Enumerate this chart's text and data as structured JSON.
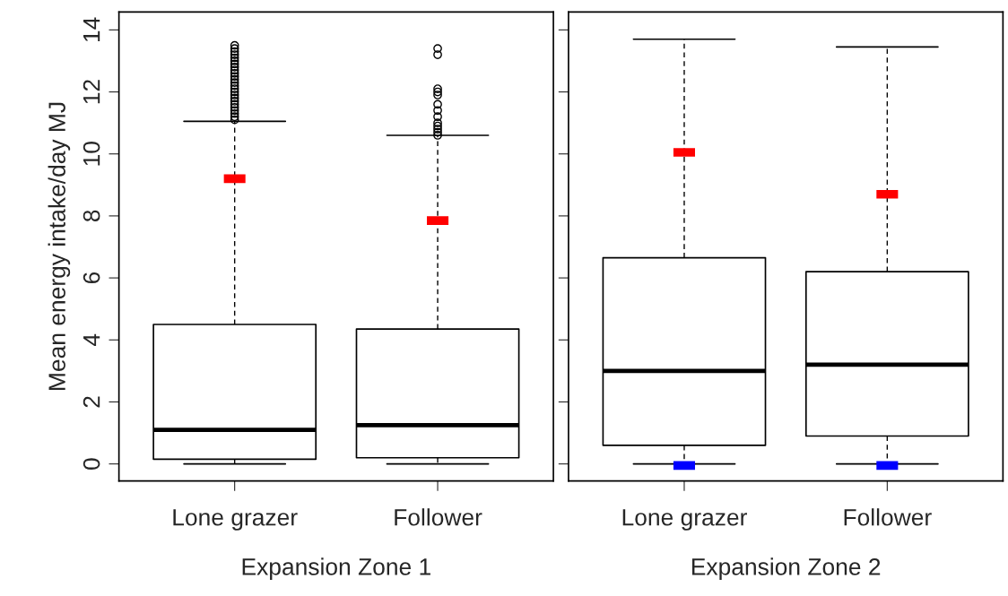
{
  "chart_data": [
    {
      "type": "box",
      "xlabel": "Expansion Zone 1",
      "ylabel": "Mean energy intake/day MJ",
      "categories": [
        "Lone grazer",
        "Follower"
      ],
      "ylim": [
        -0.55,
        14.58
      ],
      "yticks": [
        0,
        2,
        4,
        6,
        8,
        10,
        12,
        14
      ],
      "grid": false,
      "boxes": [
        {
          "low": 0,
          "q1": 0.15,
          "median": 1.1,
          "q3": 4.5,
          "high": 11.05,
          "outliers": [
            11.1,
            11.2,
            11.3,
            11.4,
            11.5,
            11.6,
            11.7,
            11.8,
            11.9,
            12.0,
            12.1,
            12.2,
            12.3,
            12.4,
            12.5,
            12.6,
            12.7,
            12.8,
            12.9,
            13.0,
            13.1,
            13.2,
            13.3,
            13.4,
            13.5
          ]
        },
        {
          "low": 0,
          "q1": 0.2,
          "median": 1.25,
          "q3": 4.35,
          "high": 10.6,
          "outliers": [
            10.6,
            10.7,
            10.8,
            10.9,
            11.0,
            11.2,
            11.4,
            11.6,
            11.9,
            12.0,
            12.1,
            13.2,
            13.4
          ]
        }
      ],
      "series": [
        {
          "type": "scatter",
          "color": "#ff0000",
          "marker": "square",
          "values": [
            9.2,
            7.85
          ]
        }
      ]
    },
    {
      "type": "box",
      "xlabel": "Expansion Zone 2",
      "categories": [
        "Lone grazer",
        "Follower"
      ],
      "ylim": [
        -0.55,
        14.58
      ],
      "yticks": [
        0,
        2,
        4,
        6,
        8,
        10,
        12,
        14
      ],
      "tick_labels": "x",
      "grid": false,
      "boxes": [
        {
          "low": 0,
          "q1": 0.6,
          "median": 3.0,
          "q3": 6.65,
          "high": 13.7
        },
        {
          "low": 0,
          "q1": 0.9,
          "median": 3.2,
          "q3": 6.2,
          "high": 13.45
        }
      ],
      "series": [
        {
          "type": "scatter",
          "color": "#ff0000",
          "marker": "square",
          "values": [
            10.05,
            8.7
          ]
        },
        {
          "type": "scatter",
          "color": "#0000ff",
          "marker": "square",
          "values": [
            -0.05,
            -0.05
          ]
        }
      ]
    }
  ]
}
